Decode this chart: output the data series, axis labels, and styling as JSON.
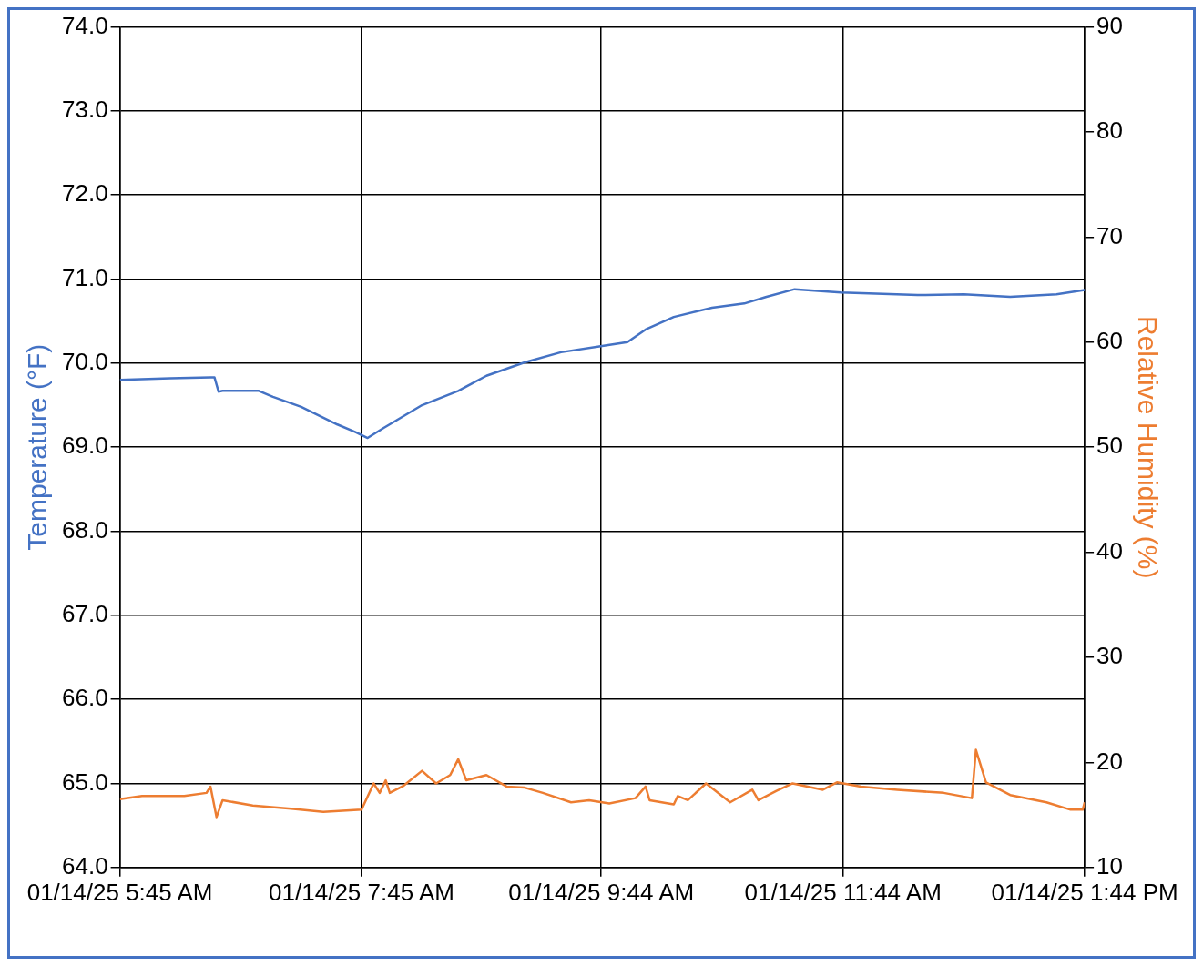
{
  "chart_data": {
    "type": "line",
    "ylabel": "Temperature (°F)",
    "y2label": "Relative Humidity (%)",
    "xlim": [
      "--01-14T05:45",
      "--01-14T13:44"
    ],
    "xticks": [
      {
        "value": "--01-14T05:45",
        "label": "01/14/25 5:45 AM"
      },
      {
        "value": "--01-14T07:45",
        "label": "01/14/25 7:45 AM"
      },
      {
        "value": "--01-14T09:44",
        "label": "01/14/25 9:44 AM"
      },
      {
        "value": "--01-14T11:44",
        "label": "01/14/25 11:44 AM"
      },
      {
        "value": "--01-14T13:44",
        "label": "01/14/25 1:44 PM"
      }
    ],
    "ylim": [
      64,
      74
    ],
    "yticks": [
      {
        "value": 64,
        "label": "64.0"
      },
      {
        "value": 65,
        "label": "65.0"
      },
      {
        "value": 66,
        "label": "66.0"
      },
      {
        "value": 67,
        "label": "67.0"
      },
      {
        "value": 68,
        "label": "68.0"
      },
      {
        "value": 69,
        "label": "69.0"
      },
      {
        "value": 70,
        "label": "70.0"
      },
      {
        "value": 71,
        "label": "71.0"
      },
      {
        "value": 72,
        "label": "72.0"
      },
      {
        "value": 73,
        "label": "73.0"
      },
      {
        "value": 74,
        "label": "74.0"
      }
    ],
    "y2lim": [
      10,
      90
    ],
    "y2ticks": [
      10,
      20,
      30,
      40,
      50,
      60,
      70,
      80,
      90
    ],
    "grid": true,
    "legend": false,
    "marker": "none",
    "line_style": "solid",
    "series": [
      {
        "color": "#4472c4",
        "x": [
          "--01-14T05:45",
          "--01-14T06:10",
          "--01-14T06:30",
          "--01-14T06:32",
          "--01-14T06:34",
          "--01-14T06:36",
          "--01-14T06:54",
          "--01-14T07:01",
          "--01-14T07:15",
          "--01-14T07:33",
          "--01-14T07:42",
          "--01-14T07:48",
          "--01-14T07:56",
          "--01-14T08:15",
          "--01-14T08:33",
          "--01-14T08:47",
          "--01-14T09:06",
          "--01-14T09:24",
          "--01-14T09:43",
          "--01-14T09:57",
          "--01-14T10:06",
          "--01-14T10:20",
          "--01-14T10:39",
          "--01-14T10:55",
          "--01-14T11:06",
          "--01-14T11:20",
          "--01-14T11:43",
          "--01-14T12:21",
          "--01-14T12:44",
          "--01-14T13:07",
          "--01-14T13:30",
          "--01-14T13:44"
        ],
        "values": [
          69.8,
          69.82,
          69.83,
          69.83,
          69.66,
          69.67,
          69.67,
          69.6,
          69.48,
          69.27,
          69.18,
          69.11,
          69.23,
          69.5,
          69.67,
          69.85,
          70.01,
          70.13,
          70.2,
          70.25,
          70.4,
          70.55,
          70.66,
          70.71,
          70.79,
          70.88,
          70.84,
          70.81,
          70.82,
          70.79,
          70.82,
          70.87
        ]
      },
      {
        "color": "#ed7d31",
        "axis": "y2",
        "x": [
          "--01-14T05:45",
          "--01-14T05:56",
          "--01-14T06:17",
          "--01-14T06:28",
          "--01-14T06:30",
          "--01-14T06:33",
          "--01-14T06:36",
          "--01-14T06:51",
          "--01-14T07:10",
          "--01-14T07:26",
          "--01-14T07:45",
          "--01-14T07:51",
          "--01-14T07:54",
          "--01-14T07:57",
          "--01-14T07:59",
          "--01-14T08:06",
          "--01-14T08:15",
          "--01-14T08:22",
          "--01-14T08:29",
          "--01-14T08:33",
          "--01-14T08:37",
          "--01-14T08:47",
          "--01-14T08:57",
          "--01-14T09:06",
          "--01-14T09:15",
          "--01-14T09:29",
          "--01-14T09:38",
          "--01-14T09:48",
          "--01-14T10:01",
          "--01-14T10:06",
          "--01-14T10:08",
          "--01-14T10:20",
          "--01-14T10:22",
          "--01-14T10:27",
          "--01-14T10:36",
          "--01-14T10:48",
          "--01-14T10:59",
          "--01-14T11:02",
          "--01-14T11:11",
          "--01-14T11:19",
          "--01-14T11:34",
          "--01-14T11:41",
          "--01-14T11:53",
          "--01-14T12:11",
          "--01-14T12:34",
          "--01-14T12:48",
          "--01-14T12:50",
          "--01-14T12:55",
          "--01-14T13:07",
          "--01-14T13:25",
          "--01-14T13:37",
          "--01-14T13:43",
          "--01-14T13:44"
        ],
        "values": [
          16.5,
          16.8,
          16.8,
          17.1,
          17.7,
          14.8,
          16.4,
          15.9,
          15.6,
          15.3,
          15.5,
          18.0,
          17.1,
          18.3,
          17.1,
          17.8,
          19.2,
          18.0,
          18.8,
          20.3,
          18.3,
          18.8,
          17.7,
          17.6,
          17.1,
          16.2,
          16.4,
          16.1,
          16.6,
          17.7,
          16.4,
          16.0,
          16.8,
          16.4,
          18.0,
          16.2,
          17.4,
          16.4,
          17.3,
          18.0,
          17.4,
          18.1,
          17.7,
          17.4,
          17.1,
          16.6,
          21.2,
          18.1,
          16.9,
          16.2,
          15.5,
          15.5,
          16.2
        ]
      }
    ]
  }
}
